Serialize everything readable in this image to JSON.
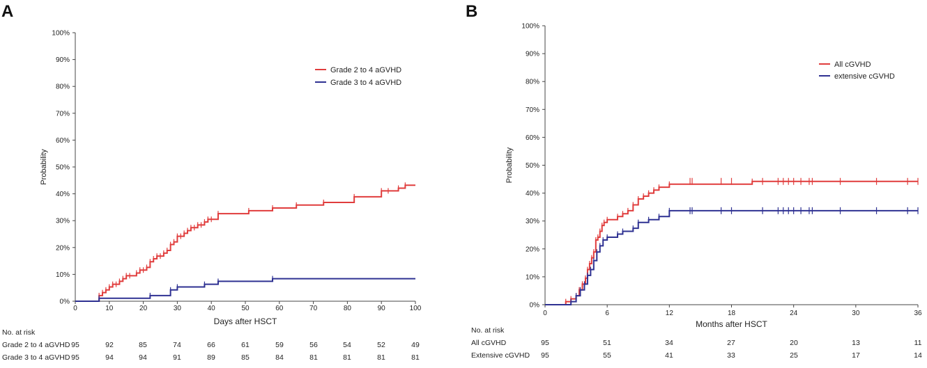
{
  "chart_data": [
    {
      "panel_label": "A",
      "type": "line",
      "step": true,
      "title": "",
      "xlabel": "Days after HSCT",
      "ylabel": "Probability",
      "xlim": [
        0,
        100
      ],
      "ylim": [
        0,
        100
      ],
      "x_ticks": [
        0,
        10,
        20,
        30,
        40,
        50,
        60,
        70,
        80,
        90,
        100
      ],
      "y_ticks": [
        "0%",
        "10%",
        "20%",
        "30%",
        "40%",
        "50%",
        "60%",
        "70%",
        "80%",
        "90%",
        "100%"
      ],
      "legend_position": "top-right",
      "series": [
        {
          "name": "Grade 2 to 4 aGVHD",
          "color": "#e03c3c",
          "x": [
            0,
            7,
            8,
            9,
            10,
            11,
            12,
            13,
            14,
            15,
            16,
            18,
            19,
            20,
            21,
            22,
            23,
            24,
            25,
            26,
            27,
            28,
            29,
            30,
            31,
            32,
            33,
            34,
            35,
            36,
            37,
            38,
            39,
            40,
            42,
            51,
            58,
            65,
            73,
            82,
            90,
            92,
            95,
            97,
            100
          ],
          "y": [
            0,
            2.1,
            3.2,
            4.2,
            5.3,
            6.3,
            6.3,
            7.4,
            8.4,
            9.5,
            9.5,
            10.5,
            11.6,
            11.6,
            12.6,
            14.7,
            15.8,
            16.8,
            16.8,
            17.9,
            18.9,
            21.1,
            22.1,
            24.2,
            24.2,
            25.3,
            26.3,
            27.4,
            27.4,
            28.4,
            28.4,
            29.5,
            30.5,
            30.5,
            32.6,
            33.7,
            34.7,
            35.8,
            36.8,
            38.9,
            41.1,
            41.1,
            42.1,
            43.2,
            43.2
          ]
        },
        {
          "name": "Grade 3 to 4 aGVHD",
          "color": "#2e3192",
          "x": [
            0,
            7,
            22,
            28,
            30,
            38,
            42,
            58,
            100
          ],
          "y": [
            0,
            1.1,
            2.1,
            4.2,
            5.3,
            6.3,
            7.4,
            8.4,
            8.4
          ]
        }
      ],
      "risk_table": {
        "header": "No. at risk",
        "time_points": [
          0,
          10,
          20,
          30,
          40,
          50,
          60,
          70,
          80,
          90,
          100
        ],
        "rows": [
          {
            "label": "Grade 2 to 4 aGVHD",
            "values": [
              "95",
              "92",
              "85",
              "74",
              "66",
              "61",
              "59",
              "56",
              "54",
              "52",
              "49"
            ]
          },
          {
            "label": "Grade 3 to 4 aGVHD",
            "values": [
              "95",
              "94",
              "94",
              "91",
              "89",
              "85",
              "84",
              "81",
              "81",
              "81",
              "81"
            ]
          }
        ]
      }
    },
    {
      "panel_label": "B",
      "type": "line",
      "step": true,
      "title": "",
      "xlabel": "Months after HSCT",
      "ylabel": "Probability",
      "xlim": [
        0,
        36
      ],
      "ylim": [
        0,
        100
      ],
      "x_ticks": [
        0,
        6,
        12,
        18,
        24,
        30,
        36
      ],
      "y_ticks": [
        "0%",
        "10%",
        "20%",
        "30%",
        "40%",
        "50%",
        "60%",
        "70%",
        "80%",
        "90%",
        "100%"
      ],
      "legend_position": "top-right",
      "series": [
        {
          "name": "All cGVHD",
          "color": "#e03c3c",
          "x": [
            0,
            2,
            2.5,
            3,
            3.3,
            3.6,
            3.9,
            4.1,
            4.3,
            4.5,
            4.7,
            4.9,
            5.1,
            5.3,
            5.5,
            5.7,
            6,
            7,
            7.5,
            8,
            8.5,
            9,
            9.5,
            10,
            10.5,
            11,
            12,
            20,
            36
          ],
          "y": [
            0,
            1.1,
            2.1,
            3.2,
            5.3,
            7.4,
            9.5,
            12.6,
            14.7,
            16.8,
            18.9,
            23.2,
            24.2,
            26.3,
            28.4,
            29.5,
            30.5,
            31.6,
            32.6,
            33.7,
            35.8,
            37.9,
            38.9,
            40,
            41.1,
            42.1,
            43.2,
            44.2,
            44.2
          ]
        },
        {
          "name": "extensive cGVHD",
          "color": "#2e3192",
          "x": [
            0,
            2.5,
            3,
            3.4,
            3.8,
            4.1,
            4.4,
            4.7,
            5,
            5.3,
            5.6,
            6,
            7,
            7.5,
            8.5,
            9,
            10,
            11,
            12,
            36
          ],
          "y": [
            0,
            1.1,
            3.2,
            5.3,
            7.4,
            10.5,
            12.6,
            15.8,
            18.9,
            21.1,
            23.2,
            24.2,
            25.3,
            26.3,
            27.4,
            29.5,
            30.5,
            31.6,
            33.7,
            33.7
          ]
        }
      ],
      "risk_table": {
        "header": "No. at risk",
        "time_points": [
          0,
          6,
          12,
          18,
          24,
          30,
          36
        ],
        "rows": [
          {
            "label": "All cGVHD",
            "values": [
              "95",
              "51",
              "34",
              "27",
              "20",
              "13",
              "11"
            ]
          },
          {
            "label": "Extensive cGVHD",
            "values": [
              "95",
              "55",
              "41",
              "33",
              "25",
              "17",
              "14"
            ]
          }
        ]
      }
    }
  ]
}
